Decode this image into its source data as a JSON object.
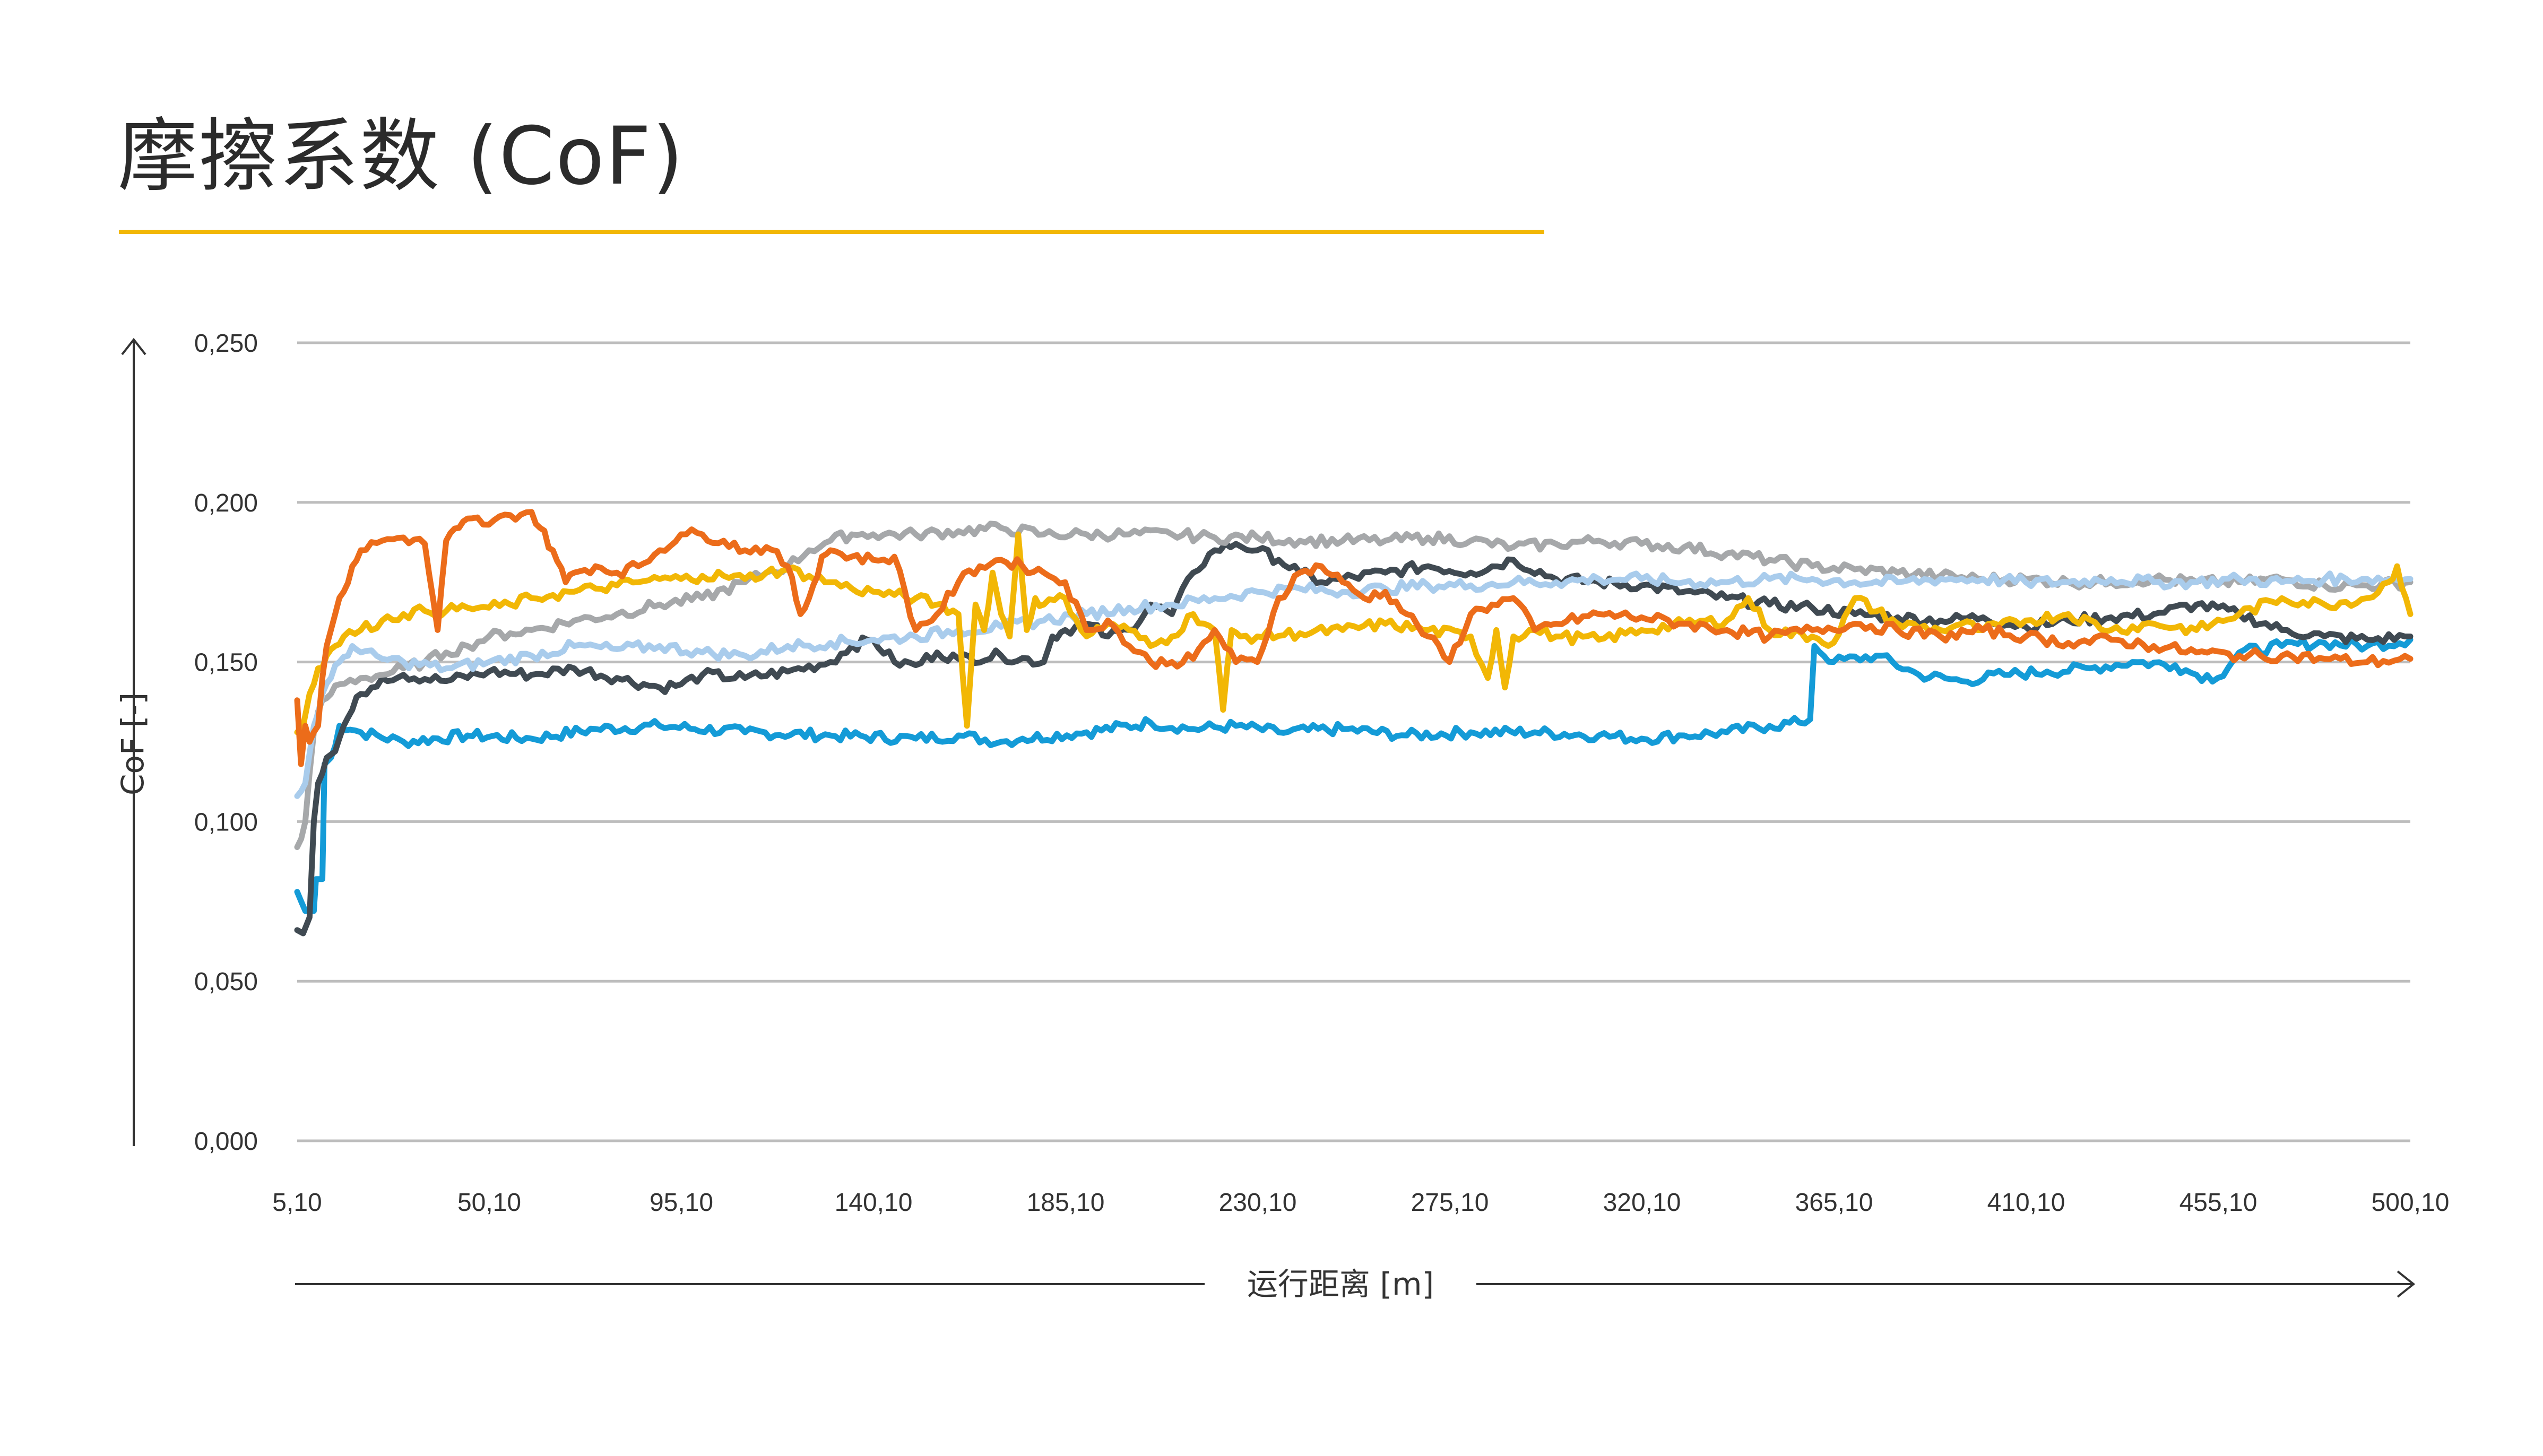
{
  "title": "摩擦系数 (CoF)",
  "colors": {
    "accent": "#F2B705",
    "grid": "#BDBDBD",
    "axis": "#333333"
  },
  "chart_data": {
    "type": "line",
    "title": "摩擦系数 (CoF)",
    "xlabel": "运行距离 [m]",
    "ylabel": "CoF [-]",
    "xlim": [
      5.1,
      500.1
    ],
    "ylim": [
      0,
      0.25
    ],
    "grid": true,
    "x_tick_labels": [
      "5,10",
      "50,10",
      "95,10",
      "140,10",
      "185,10",
      "230,10",
      "275,10",
      "320,10",
      "365,10",
      "410,10",
      "455,10",
      "500,10"
    ],
    "y_tick_labels": [
      "0,000",
      "0,050",
      "0,100",
      "0,150",
      "0,200",
      "0,250"
    ],
    "x_ticks": [
      5.1,
      50.1,
      95.1,
      140.1,
      185.1,
      230.1,
      275.1,
      320.1,
      365.1,
      410.1,
      455.1,
      500.1
    ],
    "y_ticks": [
      0,
      0.05,
      0.1,
      0.15,
      0.2,
      0.25
    ],
    "series": [
      {
        "color": "#149BD7",
        "x": [
          5.1,
          7,
          9,
          9.5,
          11,
          11.5,
          13,
          15,
          20,
          30,
          45,
          60,
          75,
          90,
          110,
          130,
          150,
          160,
          170,
          175,
          190,
          205,
          215,
          225,
          235,
          250,
          265,
          280,
          295,
          310,
          320,
          330,
          340,
          350,
          357,
          359.5,
          360.5,
          365,
          375,
          385,
          395,
          405,
          415,
          425,
          435,
          445,
          450,
          455,
          460,
          470,
          480,
          490,
          500.1
        ],
        "y": [
          0.078,
          0.072,
          0.072,
          0.082,
          0.082,
          0.118,
          0.12,
          0.13,
          0.128,
          0.125,
          0.127,
          0.126,
          0.129,
          0.13,
          0.128,
          0.127,
          0.126,
          0.127,
          0.125,
          0.126,
          0.128,
          0.131,
          0.129,
          0.13,
          0.128,
          0.129,
          0.127,
          0.128,
          0.128,
          0.127,
          0.126,
          0.127,
          0.128,
          0.13,
          0.131,
          0.132,
          0.155,
          0.15,
          0.152,
          0.146,
          0.144,
          0.146,
          0.147,
          0.148,
          0.15,
          0.149,
          0.146,
          0.145,
          0.153,
          0.155,
          0.156,
          0.155,
          0.157
        ]
      },
      {
        "color": "#404A52",
        "x": [
          5.1,
          6.5,
          8,
          9,
          10,
          12,
          14,
          16,
          18,
          20,
          25,
          30,
          40,
          50,
          60,
          70,
          80,
          90,
          95,
          100,
          110,
          120,
          130,
          135,
          140,
          145,
          150,
          155,
          160,
          170,
          180,
          182,
          185,
          190,
          195,
          200,
          205,
          210,
          215,
          220,
          225,
          230,
          235,
          240,
          245,
          250,
          260,
          270,
          280,
          290,
          300,
          310,
          320,
          330,
          340,
          350,
          360,
          370,
          380,
          390,
          400,
          410,
          420,
          430,
          440,
          450,
          460,
          470,
          480,
          490,
          500.1
        ],
        "y": [
          0.066,
          0.065,
          0.07,
          0.1,
          0.112,
          0.12,
          0.122,
          0.13,
          0.135,
          0.14,
          0.145,
          0.146,
          0.144,
          0.147,
          0.146,
          0.148,
          0.145,
          0.142,
          0.143,
          0.146,
          0.145,
          0.147,
          0.15,
          0.155,
          0.157,
          0.15,
          0.149,
          0.153,
          0.151,
          0.152,
          0.15,
          0.158,
          0.16,
          0.162,
          0.158,
          0.16,
          0.168,
          0.165,
          0.178,
          0.185,
          0.187,
          0.185,
          0.182,
          0.178,
          0.175,
          0.176,
          0.178,
          0.18,
          0.178,
          0.182,
          0.176,
          0.175,
          0.174,
          0.172,
          0.17,
          0.168,
          0.167,
          0.165,
          0.164,
          0.163,
          0.164,
          0.161,
          0.163,
          0.164,
          0.165,
          0.168,
          0.165,
          0.16,
          0.158,
          0.157,
          0.158
        ]
      },
      {
        "color": "#A6A8AA",
        "x": [
          5.1,
          7,
          9,
          11,
          13,
          15,
          20,
          25,
          30,
          35,
          40,
          45,
          50,
          55,
          60,
          70,
          80,
          90,
          100,
          110,
          115,
          120,
          125,
          130,
          135,
          140,
          150,
          160,
          170,
          180,
          190,
          200,
          210,
          220,
          230,
          240,
          250,
          260,
          270,
          280,
          290,
          300,
          310,
          320,
          330,
          340,
          350,
          360,
          370,
          380,
          390,
          400,
          410,
          420,
          430,
          440,
          450,
          460,
          470,
          480,
          490,
          500.1
        ],
        "y": [
          0.092,
          0.1,
          0.128,
          0.138,
          0.14,
          0.143,
          0.145,
          0.146,
          0.148,
          0.15,
          0.153,
          0.155,
          0.158,
          0.159,
          0.16,
          0.163,
          0.165,
          0.168,
          0.17,
          0.175,
          0.178,
          0.18,
          0.185,
          0.188,
          0.19,
          0.19,
          0.19,
          0.191,
          0.192,
          0.19,
          0.19,
          0.19,
          0.19,
          0.189,
          0.189,
          0.188,
          0.188,
          0.188,
          0.189,
          0.188,
          0.186,
          0.187,
          0.188,
          0.187,
          0.186,
          0.184,
          0.182,
          0.18,
          0.179,
          0.178,
          0.177,
          0.176,
          0.176,
          0.175,
          0.175,
          0.176,
          0.175,
          0.175,
          0.176,
          0.174,
          0.174,
          0.175
        ]
      },
      {
        "color": "#A9CCEC",
        "x": [
          5.1,
          7,
          9,
          11,
          13,
          15,
          18,
          20,
          25,
          30,
          40,
          50,
          60,
          70,
          80,
          90,
          100,
          110,
          120,
          130,
          140,
          150,
          160,
          170,
          180,
          190,
          200,
          210,
          220,
          230,
          240,
          250,
          260,
          270,
          280,
          290,
          300,
          310,
          320,
          330,
          340,
          350,
          360,
          370,
          380,
          390,
          400,
          410,
          420,
          430,
          440,
          450,
          460,
          470,
          480,
          490,
          500.1
        ],
        "y": [
          0.108,
          0.112,
          0.13,
          0.14,
          0.145,
          0.15,
          0.155,
          0.153,
          0.151,
          0.15,
          0.148,
          0.15,
          0.152,
          0.155,
          0.154,
          0.155,
          0.153,
          0.152,
          0.155,
          0.156,
          0.157,
          0.158,
          0.16,
          0.161,
          0.163,
          0.165,
          0.167,
          0.168,
          0.17,
          0.172,
          0.173,
          0.172,
          0.173,
          0.174,
          0.174,
          0.175,
          0.175,
          0.176,
          0.176,
          0.175,
          0.175,
          0.176,
          0.176,
          0.175,
          0.175,
          0.176,
          0.176,
          0.175,
          0.175,
          0.176,
          0.175,
          0.175,
          0.176,
          0.175,
          0.176,
          0.176,
          0.176
        ]
      },
      {
        "color": "#F2B705",
        "x": [
          5.1,
          6.5,
          8,
          10,
          12,
          14,
          16,
          20,
          25,
          30,
          35,
          40,
          45,
          50,
          55,
          60,
          65,
          70,
          75,
          80,
          85,
          90,
          95,
          100,
          105,
          110,
          115,
          120,
          125,
          130,
          135,
          140,
          145,
          150,
          155,
          160,
          162,
          164,
          166,
          168,
          170,
          172,
          174,
          176,
          178,
          180,
          185,
          190,
          195,
          200,
          205,
          210,
          215,
          220,
          222,
          224,
          226,
          230,
          240,
          250,
          260,
          270,
          280,
          284,
          286,
          288,
          290,
          295,
          300,
          310,
          320,
          330,
          340,
          345,
          350,
          360,
          365,
          370,
          380,
          390,
          395,
          400,
          410,
          420,
          430,
          440,
          450,
          460,
          470,
          480,
          490,
          495,
          497,
          500.1
        ],
        "y": [
          0.128,
          0.13,
          0.14,
          0.148,
          0.152,
          0.155,
          0.158,
          0.16,
          0.163,
          0.165,
          0.166,
          0.166,
          0.167,
          0.167,
          0.168,
          0.17,
          0.171,
          0.172,
          0.173,
          0.174,
          0.175,
          0.176,
          0.176,
          0.177,
          0.177,
          0.176,
          0.178,
          0.179,
          0.177,
          0.175,
          0.173,
          0.172,
          0.171,
          0.17,
          0.168,
          0.165,
          0.13,
          0.168,
          0.16,
          0.178,
          0.165,
          0.158,
          0.19,
          0.16,
          0.17,
          0.168,
          0.17,
          0.158,
          0.162,
          0.16,
          0.155,
          0.158,
          0.165,
          0.16,
          0.135,
          0.16,
          0.158,
          0.158,
          0.159,
          0.16,
          0.162,
          0.16,
          0.158,
          0.145,
          0.16,
          0.142,
          0.158,
          0.16,
          0.158,
          0.157,
          0.16,
          0.162,
          0.163,
          0.17,
          0.16,
          0.158,
          0.156,
          0.17,
          0.162,
          0.16,
          0.162,
          0.16,
          0.163,
          0.165,
          0.16,
          0.162,
          0.16,
          0.165,
          0.17,
          0.168,
          0.17,
          0.175,
          0.18,
          0.165
        ]
      },
      {
        "color": "#EC6C1A",
        "x": [
          5.1,
          6,
          7,
          8,
          9,
          10,
          11,
          12,
          13,
          14,
          16,
          18,
          20,
          25,
          30,
          35,
          38,
          40,
          43,
          46,
          50,
          55,
          60,
          62,
          65,
          68,
          70,
          75,
          80,
          85,
          90,
          95,
          100,
          105,
          110,
          115,
          120,
          123,
          125,
          128,
          130,
          135,
          140,
          145,
          150,
          155,
          160,
          165,
          170,
          175,
          180,
          185,
          190,
          195,
          200,
          205,
          210,
          215,
          220,
          225,
          230,
          235,
          240,
          245,
          250,
          255,
          260,
          265,
          270,
          275,
          280,
          285,
          290,
          295,
          300,
          310,
          320,
          330,
          340,
          350,
          360,
          370,
          380,
          390,
          400,
          410,
          420,
          430,
          440,
          450,
          460,
          470,
          480,
          490,
          500.1
        ],
        "y": [
          0.138,
          0.118,
          0.13,
          0.125,
          0.128,
          0.13,
          0.145,
          0.155,
          0.16,
          0.165,
          0.172,
          0.18,
          0.185,
          0.188,
          0.189,
          0.187,
          0.16,
          0.188,
          0.192,
          0.195,
          0.193,
          0.196,
          0.197,
          0.192,
          0.185,
          0.175,
          0.178,
          0.18,
          0.178,
          0.18,
          0.185,
          0.19,
          0.19,
          0.188,
          0.185,
          0.186,
          0.18,
          0.165,
          0.17,
          0.183,
          0.185,
          0.183,
          0.182,
          0.183,
          0.16,
          0.165,
          0.175,
          0.18,
          0.182,
          0.18,
          0.178,
          0.175,
          0.16,
          0.163,
          0.155,
          0.15,
          0.15,
          0.151,
          0.16,
          0.15,
          0.15,
          0.17,
          0.178,
          0.18,
          0.175,
          0.17,
          0.172,
          0.165,
          0.158,
          0.15,
          0.165,
          0.168,
          0.17,
          0.16,
          0.162,
          0.165,
          0.164,
          0.162,
          0.16,
          0.158,
          0.16,
          0.162,
          0.16,
          0.158,
          0.16,
          0.158,
          0.156,
          0.157,
          0.155,
          0.153,
          0.152,
          0.152,
          0.151,
          0.15,
          0.151
        ]
      }
    ]
  }
}
